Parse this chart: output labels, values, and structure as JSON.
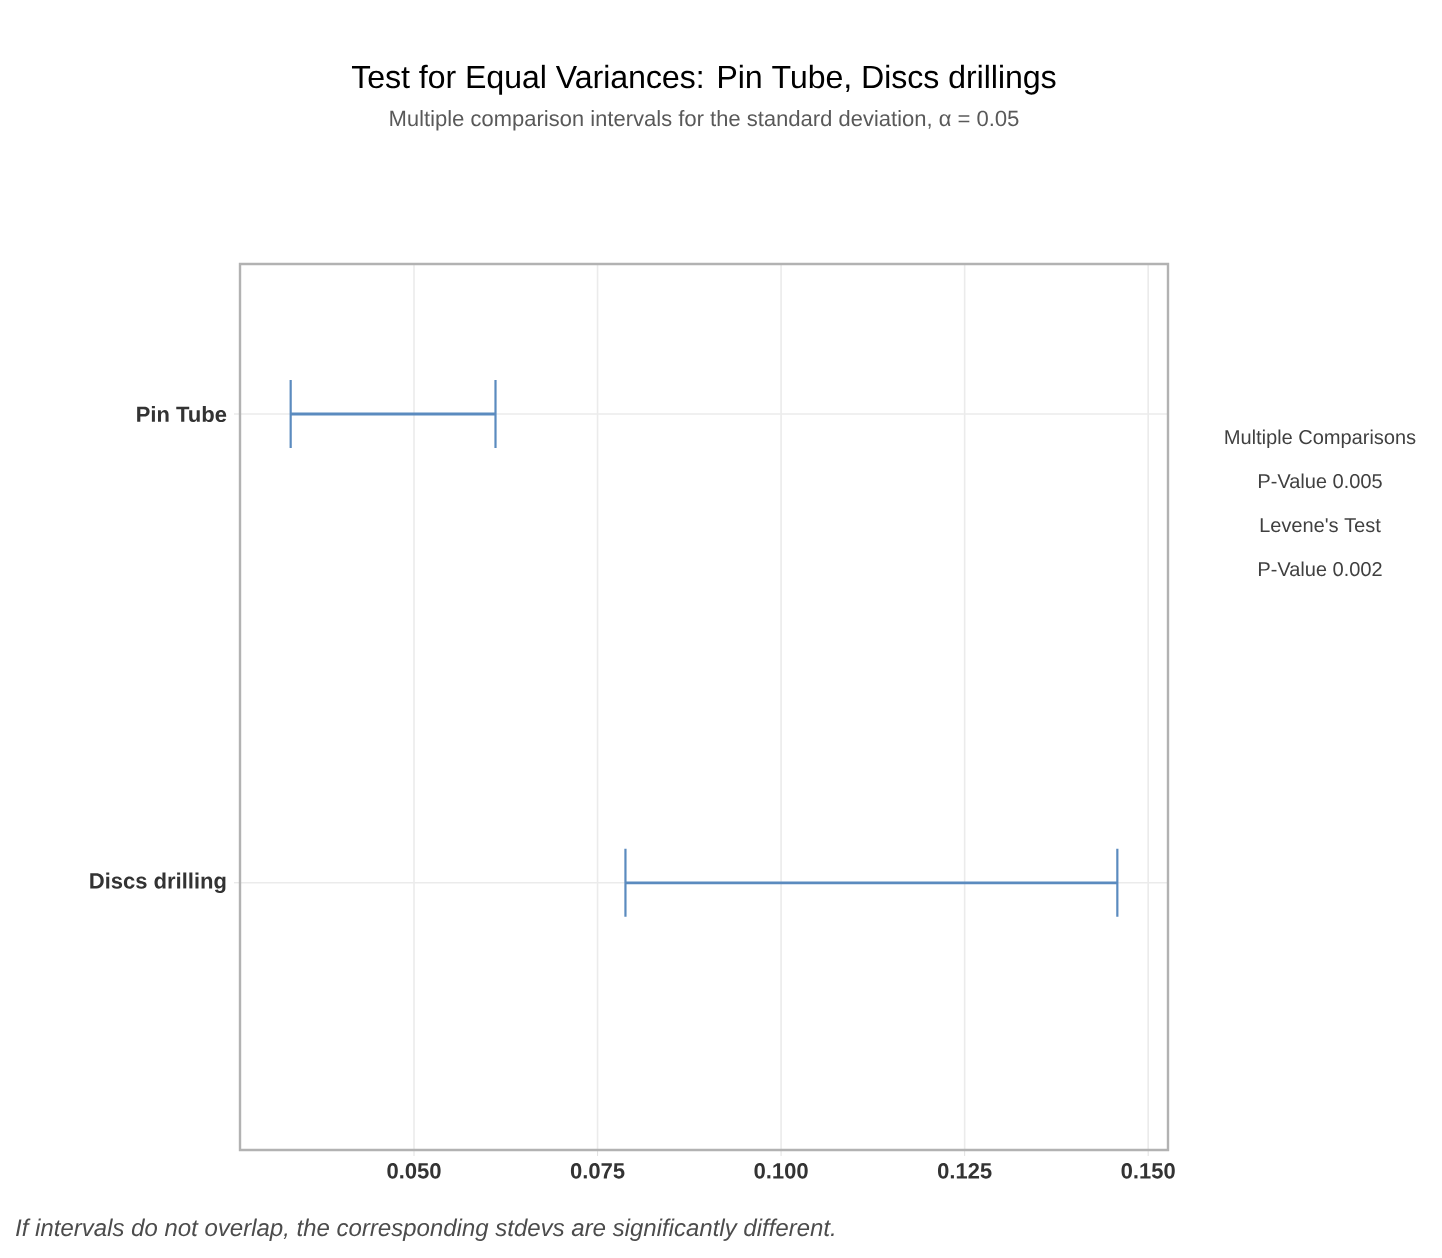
{
  "chart_data": {
    "type": "bar",
    "orientation": "horizontal",
    "title": "Test for Equal Variances: Pin Tube, Discs drillings",
    "subtitle": "Multiple comparison intervals for the standard deviation, α = 0.05",
    "categories": [
      "Pin Tube",
      "Discs drilling"
    ],
    "base": [
      0.0332,
      0.0788
    ],
    "values": [
      0.0279,
      0.067
    ],
    "color": "#5b8bbf",
    "xlim": [
      0.0263,
      0.1527
    ],
    "xticks": [
      {
        "value": 0.05,
        "label": "0.050"
      },
      {
        "value": 0.075,
        "label": "0.075"
      },
      {
        "value": 0.1,
        "label": "0.100"
      },
      {
        "value": 0.125,
        "label": "0.125"
      },
      {
        "value": 0.15,
        "label": "0.150"
      }
    ],
    "grid": true,
    "annotations": [
      "Multiple Comparisons",
      "P-Value    0.005",
      "Levene's Test",
      "P-Value    0.002",
      "If intervals do not overlap, the corresponding stdevs are significantly different."
    ]
  }
}
